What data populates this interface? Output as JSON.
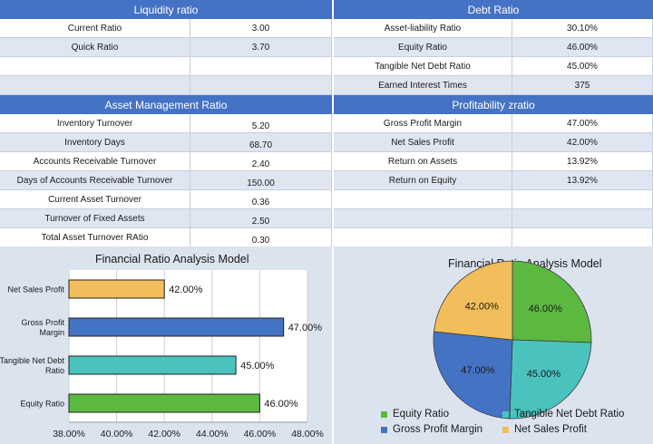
{
  "liquidity": {
    "title": "Liquidity ratio",
    "rows": [
      {
        "label": "Current Ratio",
        "value": "3.00"
      },
      {
        "label": "Quick Ratio",
        "value": "3.70"
      },
      {
        "label": "",
        "value": ""
      },
      {
        "label": "",
        "value": ""
      }
    ]
  },
  "debt": {
    "title": "Debt Ratio",
    "rows": [
      {
        "label": "Asset-liability Ratio",
        "value": "30.10%"
      },
      {
        "label": "Equity Ratio",
        "value": "46.00%"
      },
      {
        "label": "Tangible Net Debt Ratio",
        "value": "45.00%"
      },
      {
        "label": "Earned Interest Times",
        "value": "375"
      }
    ]
  },
  "asset_mgmt": {
    "title": "Asset Management Ratio",
    "rows": [
      {
        "label": "Inventory Turnover",
        "value": "5.20"
      },
      {
        "label": "Inventory Days",
        "value": "68.70"
      },
      {
        "label": "Accounts Receivable Turnover",
        "value": "2.40"
      },
      {
        "label": "Days of Accounts Receivable Turnover",
        "value": "150.00"
      },
      {
        "label": "Current Asset Turnover",
        "value": "0.36"
      },
      {
        "label": "Turnover of Fixed Assets",
        "value": "2.50"
      },
      {
        "label": "Total Asset Turnover RAtio",
        "value": "0.30"
      }
    ]
  },
  "profitability": {
    "title": "Profitability zratio",
    "rows": [
      {
        "label": "Gross Profit Margin",
        "value": "47.00%"
      },
      {
        "label": "Net Sales Profit",
        "value": "42.00%"
      },
      {
        "label": "Return on Assets",
        "value": "13.92%"
      },
      {
        "label": "Return on Equity",
        "value": "13.92%"
      },
      {
        "label": "",
        "value": ""
      },
      {
        "label": "",
        "value": ""
      },
      {
        "label": "",
        "value": ""
      }
    ]
  },
  "colors": {
    "header": "#4472c4",
    "equity": "#5cb940",
    "tangible": "#4ac2be",
    "gross": "#4473c4",
    "net_sales": "#f2bd5b"
  },
  "chart_data": [
    {
      "type": "bar",
      "orientation": "horizontal",
      "title": "Financial Ratio Analysis Model",
      "categories": [
        "Net Sales Profit",
        "Gross Profit Margin",
        "Tangible Net Debt Ratio",
        "Equity Ratio"
      ],
      "category_lines": [
        [
          "Net Sales Profit"
        ],
        [
          "Gross Profit",
          "Margin"
        ],
        [
          "Tangible Net Debt",
          "Ratio"
        ],
        [
          "Equity Ratio"
        ]
      ],
      "values": [
        42.0,
        47.0,
        45.0,
        46.0
      ],
      "value_labels": [
        "42.00%",
        "47.00%",
        "45.00%",
        "46.00%"
      ],
      "bar_colors": [
        "#f2bd5b",
        "#4473c4",
        "#4ac2be",
        "#5cb940"
      ],
      "xlim": [
        38,
        48
      ],
      "xticks": [
        38,
        40,
        42,
        44,
        46,
        48
      ],
      "xtick_labels": [
        "38.00%",
        "40.00%",
        "42.00%",
        "44.00%",
        "46.00%",
        "48.00%"
      ],
      "grid": true
    },
    {
      "type": "pie",
      "title": "Financial Ratio Analysis Model",
      "slices": [
        {
          "name": "Equity Ratio",
          "value": 46.0,
          "label": "46.00%",
          "color": "#5cb940"
        },
        {
          "name": "Tangible Net Debt Ratio",
          "value": 45.0,
          "label": "45.00%",
          "color": "#4ac2be"
        },
        {
          "name": "Gross Profit Margin",
          "value": 47.0,
          "label": "47.00%",
          "color": "#4473c4"
        },
        {
          "name": "Net Sales Profit",
          "value": 42.0,
          "label": "42.00%",
          "color": "#f2bd5b"
        }
      ],
      "legend": "bottom"
    }
  ]
}
